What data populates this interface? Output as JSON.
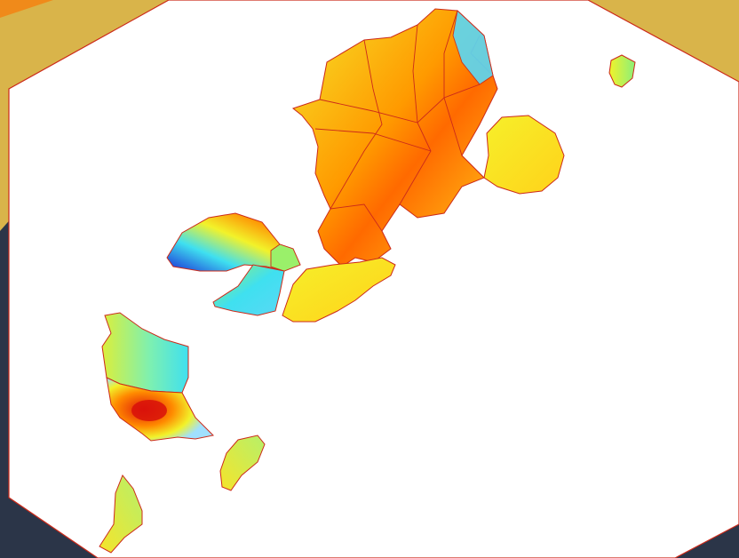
{
  "colors": {
    "frame_navy": "#2b3548",
    "frame_gold": "#d9b44a",
    "frame_orange": "#f08a1a",
    "border_line": "#cc2a1a",
    "ramp_low": "#1a2bd6",
    "ramp_cyan": "#3fe0f0",
    "ramp_mid": "#f2f22a",
    "ramp_orange": "#ff9a00",
    "ramp_high": "#e01a0a"
  },
  "map": {
    "type": "choropleth-interpolated-regions",
    "regions": [
      {
        "name": "north-cluster",
        "intensity": 0.55
      },
      {
        "name": "north-east-blob",
        "intensity": 0.35
      },
      {
        "name": "middle-west",
        "intensity": 0.4
      },
      {
        "name": "middle-south",
        "intensity": 0.3
      },
      {
        "name": "south-west",
        "intensity": 0.7
      },
      {
        "name": "small-isle-a",
        "intensity": 0.2
      },
      {
        "name": "small-isle-b",
        "intensity": 0.15
      },
      {
        "name": "small-isle-c",
        "intensity": 0.25
      }
    ]
  }
}
